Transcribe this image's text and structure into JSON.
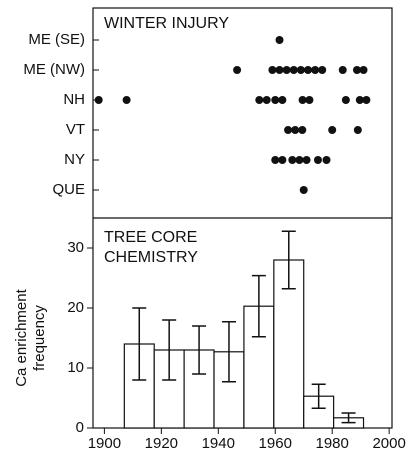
{
  "chart_data": [
    {
      "type": "scatter",
      "title": "WINTER INJURY",
      "categories": [
        "ME (SE)",
        "ME (NW)",
        "NH",
        "VT",
        "NY",
        "QUE"
      ],
      "values": [
        [
          1961.5
        ],
        [
          1946.6,
          1959,
          1961.5,
          1964,
          1966.5,
          1969,
          1971.5,
          1974,
          1976.5,
          1983.7,
          1988.7,
          1991
        ],
        [
          1898,
          1907.8,
          1954.4,
          1957,
          1960,
          1962.5,
          1969.6,
          1972,
          1984.8,
          1989.7,
          1992
        ],
        [
          1964.5,
          1967,
          1969.5,
          1980,
          1989
        ],
        [
          1960,
          1962.5,
          1966,
          1968.5,
          1971,
          1975,
          1978
        ],
        [
          1970
        ]
      ],
      "color": "#111111"
    },
    {
      "type": "histogram",
      "title": "TREE CORE CHEMISTRY",
      "ylabel": "Ca enrichment frequency",
      "bins": [
        1907,
        1917.5,
        1928,
        1938.5,
        1949,
        1959.5,
        1970,
        1980.5,
        1991
      ],
      "values": [
        14,
        13,
        13,
        12.7,
        20.3,
        28,
        5.3,
        1.7
      ],
      "errors": [
        6,
        5,
        4,
        5,
        5.1,
        4.8,
        2,
        0.8
      ],
      "xlim": [
        1896,
        2001
      ],
      "xticks": [
        1900,
        1920,
        1940,
        1960,
        1980,
        2000
      ],
      "ylim": [
        0,
        35
      ],
      "yticks": [
        0,
        10,
        20,
        30
      ],
      "color": "#ffffff"
    }
  ]
}
